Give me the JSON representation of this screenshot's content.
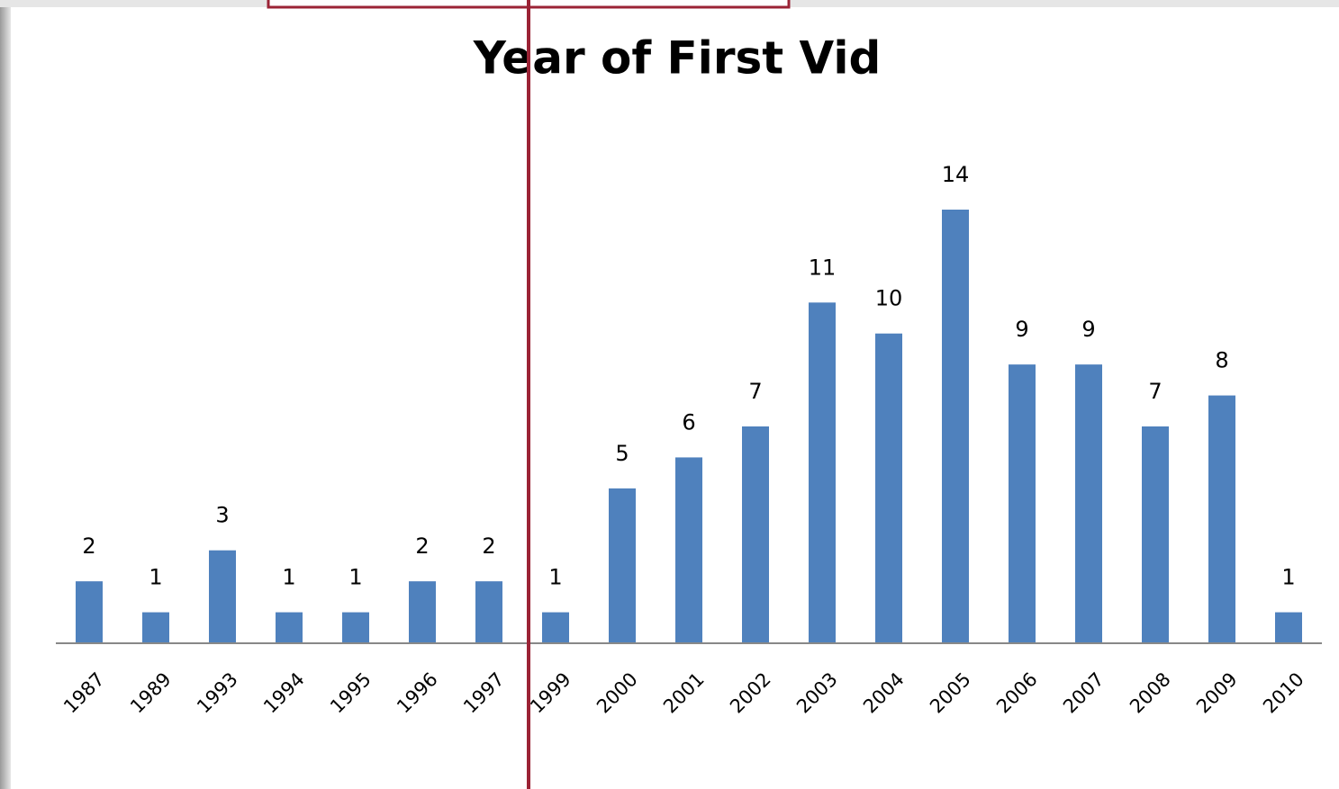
{
  "chart_data": {
    "type": "bar",
    "title": "Year of First Vid",
    "categories": [
      "1987",
      "1989",
      "1993",
      "1994",
      "1995",
      "1996",
      "1997",
      "1999",
      "2000",
      "2001",
      "2002",
      "2003",
      "2004",
      "2005",
      "2006",
      "2007",
      "2008",
      "2009",
      "2010"
    ],
    "values": [
      2,
      1,
      3,
      1,
      1,
      2,
      2,
      1,
      5,
      6,
      7,
      11,
      10,
      14,
      9,
      9,
      7,
      8,
      1
    ],
    "color": "#4f81bd"
  }
}
